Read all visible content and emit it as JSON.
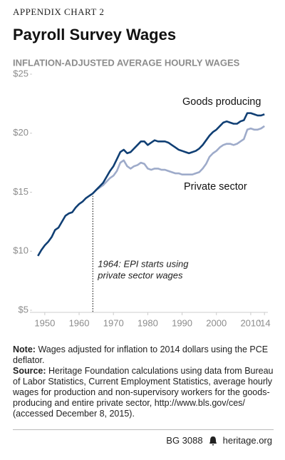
{
  "chart_data": {
    "type": "line",
    "kicker": "APPENDIX CHART 2",
    "title": "Payroll Survey Wages",
    "subtitle": "INFLATION-ADJUSTED AVERAGE HOURLY WAGES",
    "x": [
      1948,
      1949,
      1950,
      1951,
      1952,
      1953,
      1954,
      1955,
      1956,
      1957,
      1958,
      1959,
      1960,
      1961,
      1962,
      1963,
      1964,
      1965,
      1966,
      1967,
      1968,
      1969,
      1970,
      1971,
      1972,
      1973,
      1974,
      1975,
      1976,
      1977,
      1978,
      1979,
      1980,
      1981,
      1982,
      1983,
      1984,
      1985,
      1986,
      1987,
      1988,
      1989,
      1990,
      1991,
      1992,
      1993,
      1994,
      1995,
      1996,
      1997,
      1998,
      1999,
      2000,
      2001,
      2002,
      2003,
      2004,
      2005,
      2006,
      2007,
      2008,
      2009,
      2010,
      2011,
      2012,
      2013,
      2014
    ],
    "series": [
      {
        "name": "Goods producing",
        "color": "#103f74",
        "values": [
          9.6,
          10.1,
          10.5,
          10.8,
          11.2,
          11.8,
          12.0,
          12.5,
          13.0,
          13.2,
          13.3,
          13.7,
          14.0,
          14.2,
          14.5,
          14.7,
          14.9,
          15.2,
          15.5,
          15.8,
          16.3,
          16.8,
          17.2,
          17.8,
          18.4,
          18.6,
          18.3,
          18.4,
          18.7,
          19.0,
          19.3,
          19.3,
          19.0,
          19.2,
          19.4,
          19.3,
          19.3,
          19.3,
          19.2,
          19.0,
          18.8,
          18.6,
          18.5,
          18.4,
          18.3,
          18.4,
          18.5,
          18.7,
          19.0,
          19.4,
          19.8,
          20.1,
          20.3,
          20.6,
          20.9,
          21.0,
          20.9,
          20.8,
          20.8,
          21.0,
          21.1,
          21.7,
          21.7,
          21.6,
          21.5,
          21.5,
          21.6
        ]
      },
      {
        "name": "Private sector",
        "color": "#9eabca",
        "values": [
          null,
          null,
          null,
          null,
          null,
          null,
          null,
          null,
          null,
          null,
          null,
          null,
          null,
          null,
          null,
          null,
          14.9,
          15.2,
          15.4,
          15.6,
          15.9,
          16.2,
          16.4,
          16.8,
          17.5,
          17.7,
          17.2,
          17.0,
          17.2,
          17.3,
          17.5,
          17.4,
          17.0,
          16.9,
          17.0,
          17.0,
          16.9,
          16.9,
          16.8,
          16.7,
          16.6,
          16.6,
          16.5,
          16.5,
          16.5,
          16.5,
          16.6,
          16.7,
          17.0,
          17.4,
          18.0,
          18.3,
          18.5,
          18.8,
          19.0,
          19.1,
          19.1,
          19.0,
          19.1,
          19.3,
          19.5,
          20.3,
          20.4,
          20.3,
          20.3,
          20.4,
          20.6
        ]
      }
    ],
    "xlim": [
      1946.5,
      2015
    ],
    "xticks": [
      1950,
      1960,
      1970,
      1980,
      1990,
      2000,
      2010,
      {
        "value": 2014,
        "label": "'14"
      }
    ],
    "ylim": [
      5,
      25
    ],
    "yticks": [
      {
        "value": 5,
        "label": "$5"
      },
      {
        "value": 10,
        "label": "$10"
      },
      {
        "value": 15,
        "label": "$15"
      },
      {
        "value": 20,
        "label": "$20"
      },
      {
        "value": 25,
        "label": "$25"
      }
    ],
    "grid": false,
    "annotation": {
      "x": 1964,
      "lines": [
        "1964: EPI starts using",
        "private sector wages"
      ]
    },
    "note_label": "Note:",
    "note": "Wages adjusted for inflation to 2014 dollars using the PCE deflator.",
    "source_label": "Source:",
    "source": "Heritage Foundation calculations using data from Bureau of Labor Statistics, Current Employment Statistics, average hourly wages for production and non-supervisory workers for the goods-producing and entire private sector, http://www.bls.gov/ces/ (accessed December 8, 2015).",
    "report_id": "BG 3088",
    "site": "heritage.org"
  }
}
